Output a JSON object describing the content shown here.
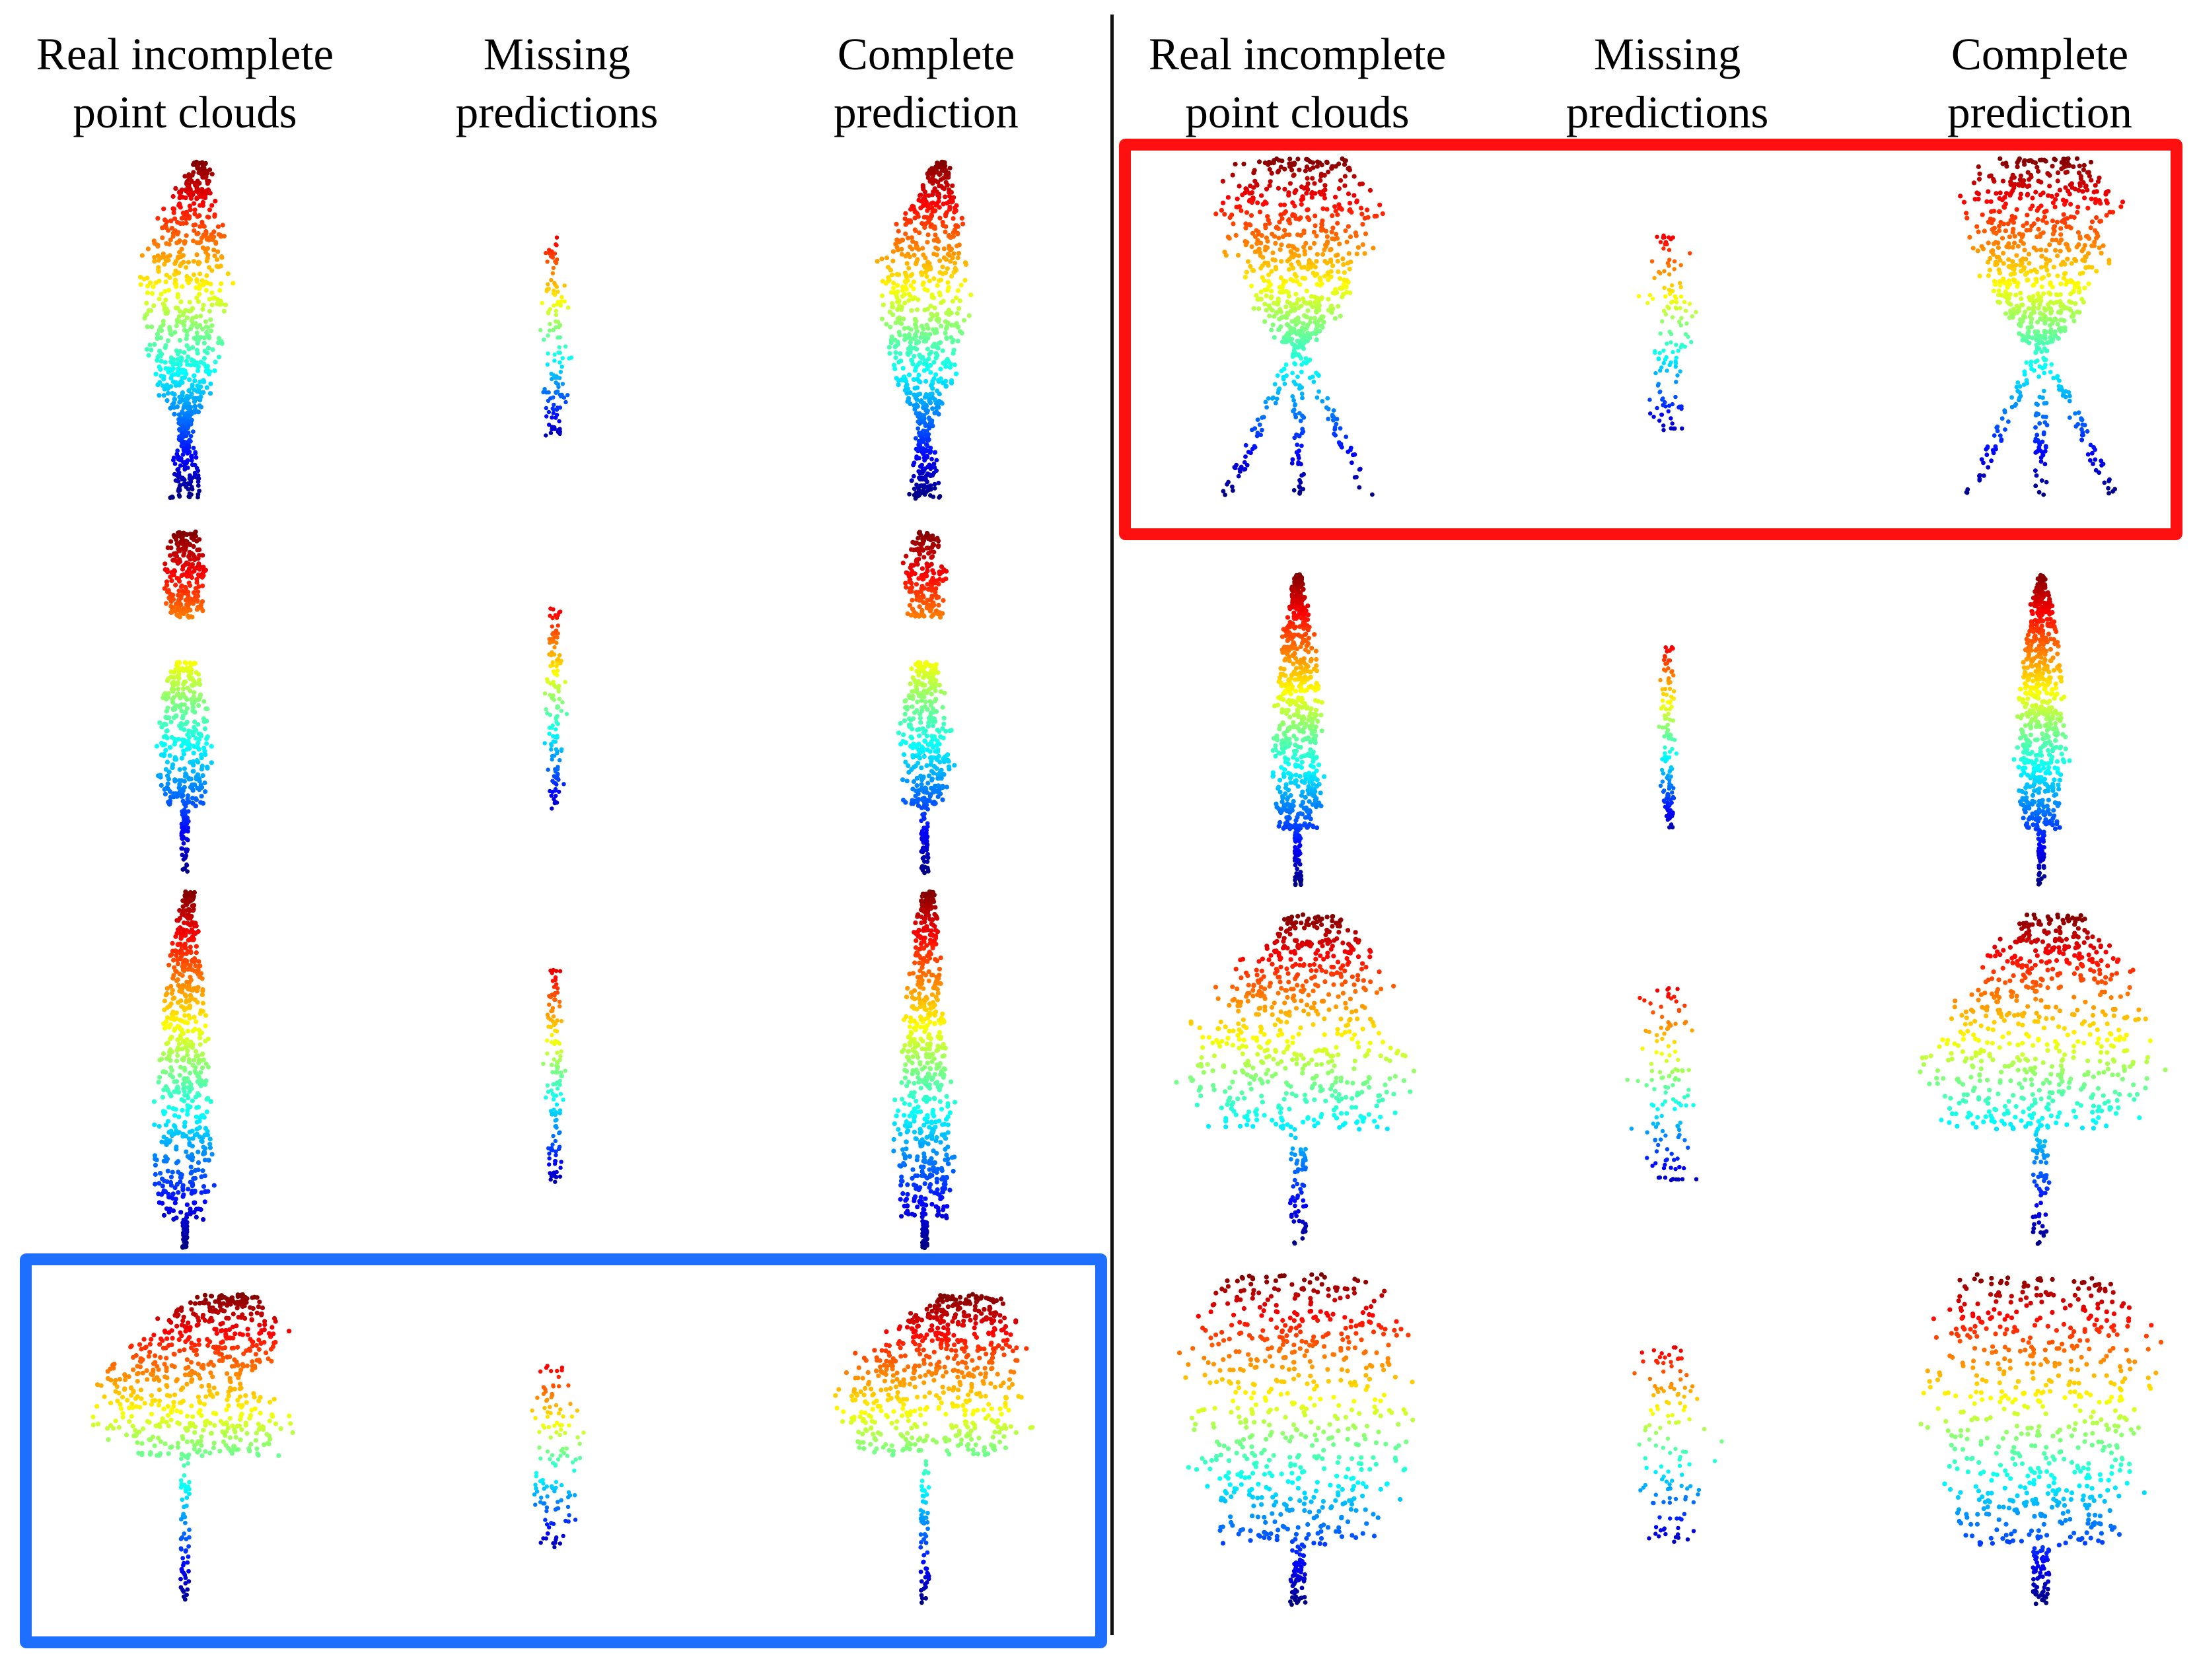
{
  "colors": {
    "red_box": "#ff1010",
    "blue_box": "#1f6fff",
    "divider": "#111111",
    "colormap": [
      "#00007f",
      "#0000ff",
      "#007fff",
      "#00ffff",
      "#7fff7f",
      "#ffff00",
      "#ff7f00",
      "#ff0000",
      "#7f0000"
    ]
  },
  "panels": [
    {
      "id": "left",
      "headers": [
        {
          "line1": "Real incomplete",
          "line2": "point clouds"
        },
        {
          "line1": "Missing",
          "line2": "predictions"
        },
        {
          "line1": "Complete",
          "line2": "prediction"
        }
      ],
      "rows": [
        {
          "shape": "columnar-split-trunk",
          "highlight": "none"
        },
        {
          "shape": "narrow-gap-top",
          "highlight": "none"
        },
        {
          "shape": "narrow-tall",
          "highlight": "none"
        },
        {
          "shape": "leaning-crown",
          "highlight": "blue"
        }
      ]
    },
    {
      "id": "right",
      "headers": [
        {
          "line1": "Real incomplete",
          "line2": "point clouds"
        },
        {
          "line1": "Missing",
          "line2": "predictions"
        },
        {
          "line1": "Complete",
          "line2": "prediction"
        }
      ],
      "rows": [
        {
          "shape": "v-shaped-branches",
          "highlight": "red"
        },
        {
          "shape": "narrow-columnar",
          "highlight": "none"
        },
        {
          "shape": "broad-crown",
          "highlight": "none"
        },
        {
          "shape": "dense-round-crown",
          "highlight": "none"
        }
      ]
    }
  ]
}
